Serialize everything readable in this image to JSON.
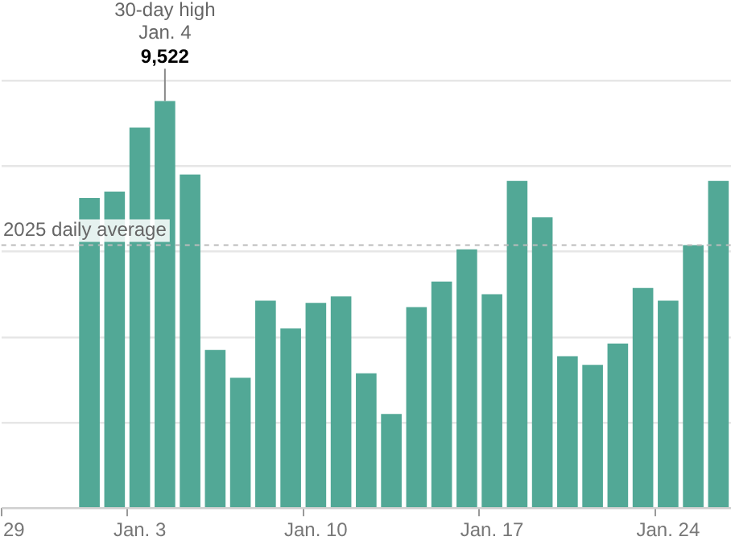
{
  "chart_data": {
    "type": "bar",
    "categories": [
      "29",
      null,
      null,
      null,
      null,
      "Jan. 3",
      null,
      null,
      null,
      null,
      null,
      null,
      "Jan. 10",
      null,
      null,
      null,
      null,
      null,
      null,
      "Jan. 17",
      null,
      null,
      null,
      null,
      null,
      null,
      "Jan. 24",
      null,
      null
    ],
    "values": [
      null,
      null,
      null,
      7250,
      7400,
      8900,
      9522,
      7800,
      3700,
      3050,
      4850,
      4200,
      4800,
      4950,
      3150,
      2200,
      4700,
      5300,
      6050,
      5000,
      7650,
      6800,
      3550,
      3350,
      3850,
      5150,
      4850,
      6150,
      7650
    ],
    "value_labels": [
      null,
      null,
      null,
      null,
      null,
      null,
      "9,522",
      null,
      null,
      null,
      null,
      null,
      null,
      null,
      null,
      null,
      null,
      null,
      null,
      null,
      null,
      null,
      null,
      null,
      null,
      null,
      null,
      null,
      null
    ],
    "color": "#52a896",
    "ylim": [
      0,
      10000
    ],
    "yticks": [
      {
        "value": 0,
        "label": null
      },
      {
        "value": 2000,
        "label": null
      },
      {
        "value": 4000,
        "label": null
      },
      {
        "value": 6000,
        "label": null
      },
      {
        "value": 8000,
        "label": null
      },
      {
        "value": 10000,
        "label": null
      }
    ],
    "grid": "y",
    "legend": false,
    "ref_lines": [
      {
        "axis": "y",
        "value": 6150,
        "label": "2025 daily average",
        "line_style": "dashed",
        "color": "#bbbbbb"
      }
    ],
    "annotations": [
      {
        "text": "30-day high\nJan. 4",
        "y": 9522
      }
    ]
  }
}
